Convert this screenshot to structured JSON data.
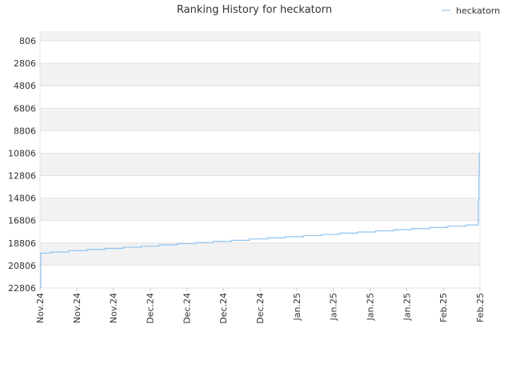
{
  "chart_data": {
    "type": "line",
    "title": "Ranking History for heckatorn",
    "xlabel": "",
    "ylabel": "",
    "y_inverted": true,
    "ylim": [
      806,
      22806
    ],
    "y_ticks": [
      806,
      2806,
      4806,
      6806,
      8806,
      10806,
      12806,
      14806,
      16806,
      18806,
      20806,
      22806
    ],
    "x_tick_labels": [
      "Nov.24",
      "Nov.24",
      "Nov.24",
      "Dec.24",
      "Dec.24",
      "Dec.24",
      "Dec.24",
      "Jan.25",
      "Jan.25",
      "Jan.25",
      "Jan.25",
      "Feb.25",
      "Feb.25"
    ],
    "grid": true,
    "legend_position": "top-right",
    "colors": {
      "series": "#90c4f0",
      "band": "#f2f2f2",
      "grid": "#dddddd"
    },
    "series": [
      {
        "name": "heckatorn",
        "x": [
          0,
          0.0018,
          0.0018,
          0.025,
          0.025,
          0.066,
          0.066,
          0.107,
          0.107,
          0.148,
          0.148,
          0.189,
          0.189,
          0.23,
          0.23,
          0.271,
          0.271,
          0.312,
          0.312,
          0.353,
          0.353,
          0.394,
          0.394,
          0.435,
          0.435,
          0.476,
          0.476,
          0.517,
          0.517,
          0.558,
          0.558,
          0.599,
          0.599,
          0.64,
          0.64,
          0.681,
          0.681,
          0.722,
          0.722,
          0.763,
          0.763,
          0.804,
          0.804,
          0.845,
          0.845,
          0.886,
          0.886,
          0.927,
          0.927,
          0.968,
          0.968,
          0.996,
          0.996,
          0.9975,
          0.9975,
          0.9985,
          0.9985,
          1.0
        ],
        "y": [
          22806,
          22806,
          19700,
          19700,
          19600,
          19600,
          19480,
          19480,
          19380,
          19380,
          19280,
          19280,
          19180,
          19180,
          19080,
          19080,
          18960,
          18960,
          18860,
          18860,
          18760,
          18760,
          18660,
          18660,
          18560,
          18560,
          18440,
          18440,
          18340,
          18340,
          18240,
          18240,
          18140,
          18140,
          18040,
          18040,
          17920,
          17920,
          17820,
          17820,
          17720,
          17720,
          17620,
          17620,
          17520,
          17520,
          17420,
          17420,
          17300,
          17300,
          17200,
          17200,
          15000,
          15000,
          12500,
          12500,
          10806,
          10806
        ]
      }
    ]
  }
}
